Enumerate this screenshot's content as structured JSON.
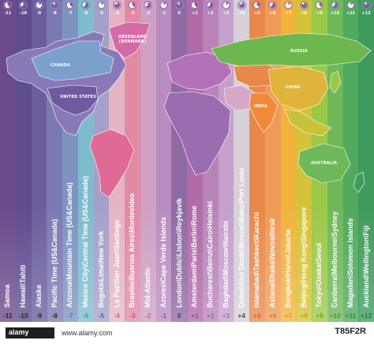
{
  "map": {
    "region_labels": [
      "CANADA",
      "UNITED STATES",
      "GREENLAND (DENMARK)",
      "RUSSIA",
      "CHINA",
      "INDIA",
      "AUSTRALIA"
    ],
    "zones": [
      {
        "offset": "-11",
        "name": "Samoa",
        "color": "#6b4a8a",
        "text_color": "#2a2a2a"
      },
      {
        "offset": "-10",
        "name": "Hawaii\\Tahiti",
        "color": "#5f4c8f",
        "text_color": "#2a2a2a"
      },
      {
        "offset": "-9",
        "name": "Alaska",
        "color": "#6a5e9e",
        "text_color": "#2a2a2a"
      },
      {
        "offset": "-8",
        "name": "Pacific Time (US&Canada)",
        "color": "#7b79b1",
        "text_color": "#2a2a2a"
      },
      {
        "offset": "-7",
        "name": "Arizona\\Mountain Time (US&Canada)",
        "color": "#7f93c0",
        "text_color": "#3a7fb0"
      },
      {
        "offset": "-6",
        "name": "Mexico City\\Central Time (US&Canada)",
        "color": "#7ebccd",
        "text_color": "#3a9ec0"
      },
      {
        "offset": "-5",
        "name": "Bogota\\Lima\\New York",
        "color": "#a4a0c9",
        "text_color": "#5b5b9a"
      },
      {
        "offset": "-4",
        "name": "La Paz\\San Juan\\Santiago",
        "color": "#e5b5c4",
        "text_color": "#c86b8b"
      },
      {
        "offset": "-3",
        "name": "Brasilia\\Buenos Aires\\Montevideo",
        "color": "#e08aa6",
        "text_color": "#c84b74"
      },
      {
        "offset": "-2",
        "name": "Mid-Atlantic",
        "color": "#cf9fc4",
        "text_color": "#b06aa0"
      },
      {
        "offset": "-1",
        "name": "Azores\\Cape Verde Islands",
        "color": "#b98cc0",
        "text_color": "#7b5a9a"
      },
      {
        "offset": "0",
        "name": "London\\Dublic\\Lisbon\\Reykjavik",
        "color": "#8f6aa3",
        "text_color": "#4a3a6a"
      },
      {
        "offset": "+1",
        "name": "Amsterdam\\Paris\\Berlin\\Rome",
        "color": "#b06ba8",
        "text_color": "#9a4a8e"
      },
      {
        "offset": "+2",
        "name": "Bucharest\\Beirut\\Cairo\\Helsinki",
        "color": "#b884b8",
        "text_color": "#a06aa0"
      },
      {
        "offset": "+3",
        "name": "Baghdad\\Moscow\\Nairobi",
        "color": "#c4a0cc",
        "text_color": "#9a7ab0"
      },
      {
        "offset": "+4",
        "name": "Dubai\\Abu Dhabi\\Muscat\\Baku\\Port Louis",
        "color": "#d6d0d8",
        "text_color": "#4a4a4a"
      },
      {
        "offset": "+5",
        "name": "Islamabad\\Tashkent\\Karachi",
        "color": "#e8894a",
        "text_color": "#d8642a"
      },
      {
        "offset": "+6",
        "name": "Astana\\Dhaka\\Novosibirsk",
        "color": "#ef9b57",
        "text_color": "#e07a2a"
      },
      {
        "offset": "+7",
        "name": "Bangkok\\Hanoi\\Jakarta",
        "color": "#f2b23e",
        "text_color": "#e0961a"
      },
      {
        "offset": "+8",
        "name": "Beijing\\Hong Kong\\Singapore",
        "color": "#d6c23a",
        "text_color": "#b6a41a"
      },
      {
        "offset": "+9",
        "name": "Tokyo\\Osaka\\Seoul",
        "color": "#9cc848",
        "text_color": "#6ea82a"
      },
      {
        "offset": "+10",
        "name": "Canberra\\Melbourne\\Sydney",
        "color": "#6fb85a",
        "text_color": "#3f9a3a"
      },
      {
        "offset": "+11",
        "name": "Magadan\\Solomon Islands",
        "color": "#4fa95e",
        "text_color": "#2f8a3e"
      },
      {
        "offset": "+12",
        "name": "Auckland\\Wellington\\Fiji",
        "color": "#3f9a5e",
        "text_color": "#2a7a3e"
      }
    ]
  },
  "watermark": {
    "logo_text": "alamy",
    "url": "www.alamy.com",
    "image_id": "T85F2R"
  }
}
